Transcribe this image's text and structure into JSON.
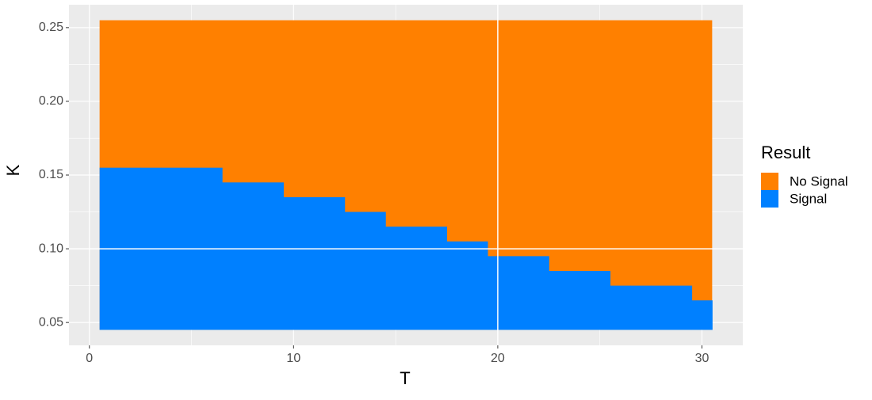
{
  "chart_data": {
    "type": "tile",
    "x_label": "T",
    "y_label": "K",
    "legend_title": "Result",
    "x": [
      1,
      2,
      3,
      4,
      5,
      6,
      7,
      8,
      9,
      10,
      11,
      12,
      13,
      14,
      15,
      16,
      17,
      18,
      19,
      20,
      21,
      22,
      23,
      24,
      25,
      26,
      27,
      28,
      29,
      30
    ],
    "k_values": [
      0.05,
      0.06,
      0.07,
      0.08,
      0.09,
      0.1,
      0.11,
      0.12,
      0.13,
      0.14,
      0.15,
      0.16,
      0.17,
      0.18,
      0.19,
      0.2,
      0.21,
      0.22,
      0.23,
      0.24,
      0.25
    ],
    "series": [
      {
        "name": "No Signal",
        "color": "#ff8000"
      },
      {
        "name": "Signal",
        "color": "#0080ff",
        "values": [
          0.15,
          0.15,
          0.15,
          0.15,
          0.15,
          0.15,
          0.14,
          0.14,
          0.14,
          0.13,
          0.13,
          0.13,
          0.12,
          0.12,
          0.11,
          0.11,
          0.11,
          0.1,
          0.1,
          0.09,
          0.09,
          0.09,
          0.08,
          0.08,
          0.08,
          0.07,
          0.07,
          0.07,
          0.07,
          0.06
        ]
      }
    ],
    "reference_lines": {
      "x": 20,
      "y": 0.1
    },
    "xlim": [
      -1,
      32
    ],
    "ylim": [
      0.0345,
      0.2655
    ],
    "xticks": [
      0,
      10,
      20,
      30
    ],
    "yticks": [
      0.05,
      {
        "value": 0.1,
        "label": "0.10"
      },
      0.15,
      {
        "value": 0.2,
        "label": "0.20"
      },
      0.25
    ],
    "grid": true
  }
}
